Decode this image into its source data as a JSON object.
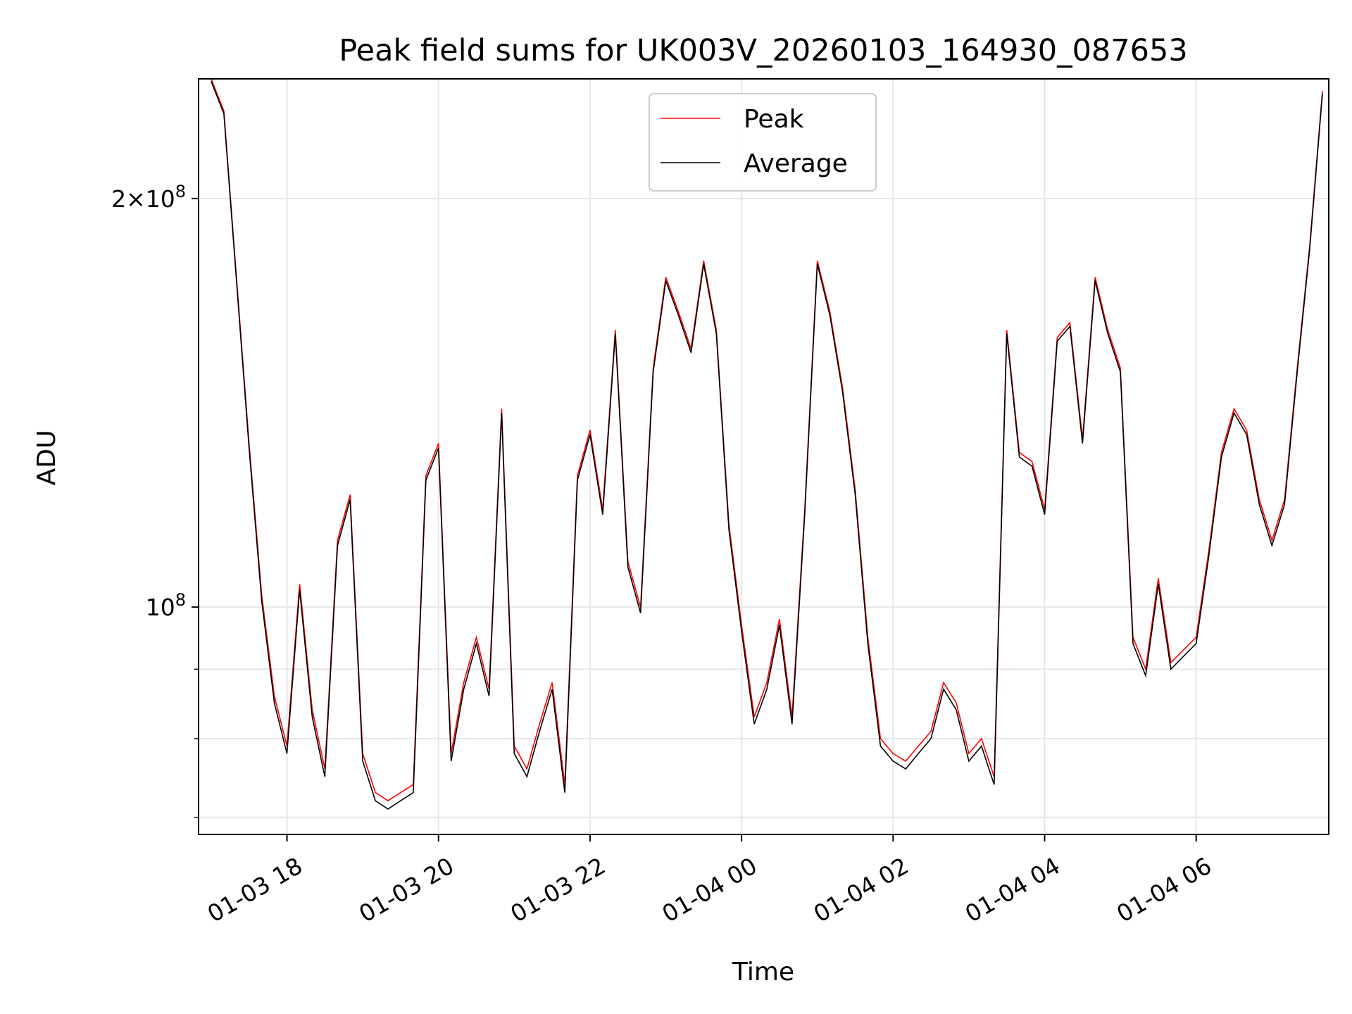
{
  "chart_data": {
    "type": "line",
    "title": "Peak field sums for UK003V_20260103_164930_087653",
    "xlabel": "Time",
    "ylabel": "ADU",
    "yscale": "log",
    "ylim": [
      68000000,
      245000000
    ],
    "xlim": [
      "2026-01-03 16:50",
      "2026-01-04 07:45"
    ],
    "grid": true,
    "legend_position": "top-center",
    "x_ticks": [
      "01-03 18",
      "01-03 20",
      "01-03 22",
      "01-04 00",
      "01-04 02",
      "01-04 04",
      "01-04 06"
    ],
    "y_tick_labels": [
      "10^8",
      "2 × 10^8"
    ],
    "series": [
      {
        "name": "Peak",
        "color": "#ff0000"
      },
      {
        "name": "Average",
        "color": "#000000"
      }
    ],
    "x": [
      "01-03 17:00",
      "01-03 17:10",
      "01-03 17:20",
      "01-03 17:30",
      "01-03 17:40",
      "01-03 17:50",
      "01-03 18:00",
      "01-03 18:10",
      "01-03 18:20",
      "01-03 18:30",
      "01-03 18:40",
      "01-03 18:50",
      "01-03 19:00",
      "01-03 19:10",
      "01-03 19:20",
      "01-03 19:30",
      "01-03 19:40",
      "01-03 19:50",
      "01-03 20:00",
      "01-03 20:10",
      "01-03 20:20",
      "01-03 20:30",
      "01-03 20:40",
      "01-03 20:50",
      "01-03 21:00",
      "01-03 21:10",
      "01-03 21:20",
      "01-03 21:30",
      "01-03 21:40",
      "01-03 21:50",
      "01-03 22:00",
      "01-03 22:10",
      "01-03 22:20",
      "01-03 22:30",
      "01-03 22:40",
      "01-03 22:50",
      "01-03 23:00",
      "01-03 23:10",
      "01-03 23:20",
      "01-03 23:30",
      "01-03 23:40",
      "01-03 23:50",
      "01-04 00:00",
      "01-04 00:10",
      "01-04 00:20",
      "01-04 00:30",
      "01-04 00:40",
      "01-04 00:50",
      "01-04 01:00",
      "01-04 01:10",
      "01-04 01:20",
      "01-04 01:30",
      "01-04 01:40",
      "01-04 01:50",
      "01-04 02:00",
      "01-04 02:10",
      "01-04 02:20",
      "01-04 02:30",
      "01-04 02:40",
      "01-04 02:50",
      "01-04 03:00",
      "01-04 03:10",
      "01-04 03:20",
      "01-04 03:30",
      "01-04 03:40",
      "01-04 03:50",
      "01-04 04:00",
      "01-04 04:10",
      "01-04 04:20",
      "01-04 04:30",
      "01-04 04:40",
      "01-04 04:50",
      "01-04 05:00",
      "01-04 05:10",
      "01-04 05:20",
      "01-04 05:30",
      "01-04 05:40",
      "01-04 05:50",
      "01-04 06:00",
      "01-04 06:10",
      "01-04 06:20",
      "01-04 06:30",
      "01-04 06:40",
      "01-04 06:50",
      "01-04 07:00",
      "01-04 07:10",
      "01-04 07:20",
      "01-04 07:30",
      "01-04 07:40"
    ],
    "values": {
      "Peak": [
        245000000,
        232000000,
        175000000,
        132000000,
        102000000,
        86000000,
        79000000,
        104000000,
        84000000,
        76000000,
        112000000,
        121000000,
        78000000,
        73000000,
        72000000,
        73000000,
        74000000,
        125000000,
        132000000,
        78000000,
        88000000,
        95000000,
        87000000,
        140000000,
        79000000,
        76000000,
        82000000,
        88000000,
        74000000,
        125000000,
        135000000,
        118000000,
        160000000,
        108000000,
        100000000,
        150000000,
        175000000,
        165000000,
        155000000,
        180000000,
        160000000,
        115000000,
        97000000,
        83000000,
        88000000,
        98000000,
        83000000,
        118000000,
        180000000,
        165000000,
        145000000,
        122000000,
        95000000,
        80000000,
        78000000,
        77000000,
        79000000,
        81000000,
        88000000,
        85000000,
        78000000,
        80000000,
        75000000,
        160000000,
        130000000,
        128000000,
        118000000,
        158000000,
        162000000,
        133000000,
        175000000,
        160000000,
        150000000,
        95000000,
        90000000,
        105000000,
        91000000,
        93000000,
        95000000,
        110000000,
        130000000,
        140000000,
        135000000,
        120000000,
        112000000,
        120000000,
        150000000,
        185000000,
        240000000
      ],
      "Average": [
        244000000,
        231000000,
        174000000,
        131000000,
        101000000,
        85000000,
        78000000,
        103000000,
        83000000,
        75000000,
        111000000,
        120000000,
        77000000,
        72000000,
        71000000,
        72000000,
        73000000,
        124000000,
        131000000,
        77000000,
        87000000,
        94000000,
        86000000,
        139000000,
        78000000,
        75000000,
        81000000,
        87000000,
        73000000,
        124000000,
        134000000,
        117000000,
        159000000,
        107000000,
        99000000,
        149000000,
        174000000,
        164000000,
        154000000,
        179000000,
        159000000,
        114000000,
        96000000,
        82000000,
        87000000,
        97000000,
        82000000,
        117000000,
        179000000,
        164000000,
        144000000,
        121000000,
        94000000,
        79000000,
        77000000,
        76000000,
        78000000,
        80000000,
        87000000,
        84000000,
        77000000,
        79000000,
        74000000,
        159000000,
        129000000,
        127000000,
        117000000,
        157000000,
        161000000,
        132000000,
        174000000,
        159000000,
        149000000,
        94000000,
        89000000,
        104000000,
        90000000,
        92000000,
        94000000,
        109000000,
        129000000,
        139000000,
        134000000,
        119000000,
        111000000,
        119000000,
        149000000,
        184000000,
        239000000
      ]
    }
  }
}
